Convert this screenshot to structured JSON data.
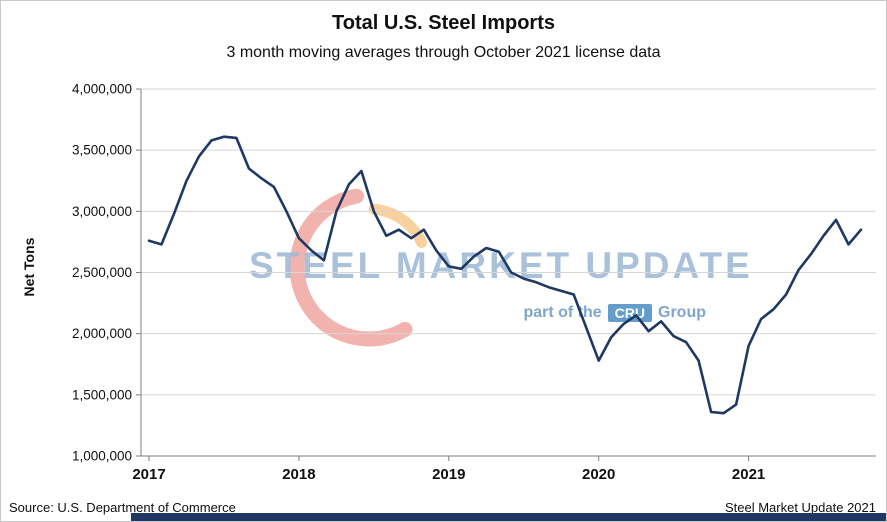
{
  "chart": {
    "title": "Total U.S. Steel Imports",
    "subtitle": "3 month moving averages through October 2021 license data",
    "ylabel": "Net Tons"
  },
  "watermark": {
    "line1": "STEEL MARKET UPDATE",
    "line2_prefix": "part of the",
    "line2_box": "CRU",
    "line2_suffix": "Group",
    "swoosh_red": "#e2574e",
    "swoosh_orange": "#f1a33e"
  },
  "footer": {
    "source": "Source: U.S. Department of Commerce",
    "credit": "Steel Market Update 2021",
    "bar_color": "#1f3864"
  },
  "chart_data": {
    "type": "line",
    "title": "Total U.S. Steel Imports",
    "subtitle": "3 month moving averages through October 2021 license data",
    "xlabel": "",
    "ylabel": "Net Tons",
    "ylim": [
      1000000,
      4000000
    ],
    "ytick_step": 500000,
    "grid": true,
    "legend": "none",
    "line_color": "#1f3864",
    "x_tick_labels": [
      "2017",
      "2018",
      "2019",
      "2020",
      "2021"
    ],
    "x": [
      "2017-01",
      "2017-02",
      "2017-03",
      "2017-04",
      "2017-05",
      "2017-06",
      "2017-07",
      "2017-08",
      "2017-09",
      "2017-10",
      "2017-11",
      "2017-12",
      "2018-01",
      "2018-02",
      "2018-03",
      "2018-04",
      "2018-05",
      "2018-06",
      "2018-07",
      "2018-08",
      "2018-09",
      "2018-10",
      "2018-11",
      "2018-12",
      "2019-01",
      "2019-02",
      "2019-03",
      "2019-04",
      "2019-05",
      "2019-06",
      "2019-07",
      "2019-08",
      "2019-09",
      "2019-10",
      "2019-11",
      "2019-12",
      "2020-01",
      "2020-02",
      "2020-03",
      "2020-04",
      "2020-05",
      "2020-06",
      "2020-07",
      "2020-08",
      "2020-09",
      "2020-10",
      "2020-11",
      "2020-12",
      "2021-01",
      "2021-02",
      "2021-03",
      "2021-04",
      "2021-05",
      "2021-06",
      "2021-07",
      "2021-08",
      "2021-09",
      "2021-10"
    ],
    "series": [
      {
        "name": "Total U.S. steel imports, 3-month moving average (net tons)",
        "values": [
          2760000,
          2730000,
          2980000,
          3250000,
          3450000,
          3580000,
          3610000,
          3600000,
          3350000,
          3270000,
          3200000,
          3000000,
          2780000,
          2680000,
          2600000,
          3000000,
          3220000,
          3330000,
          3000000,
          2800000,
          2850000,
          2780000,
          2850000,
          2680000,
          2550000,
          2530000,
          2630000,
          2700000,
          2670000,
          2500000,
          2450000,
          2420000,
          2380000,
          2350000,
          2320000,
          2050000,
          1780000,
          1970000,
          2080000,
          2150000,
          2020000,
          2100000,
          1980000,
          1930000,
          1780000,
          1360000,
          1350000,
          1420000,
          1900000,
          2120000,
          2200000,
          2320000,
          2520000,
          2650000,
          2800000,
          2930000,
          2730000,
          2850000
        ]
      }
    ]
  }
}
